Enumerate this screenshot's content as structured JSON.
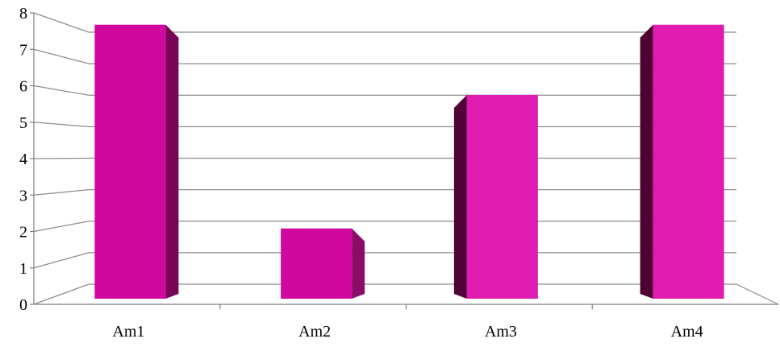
{
  "chart_data": {
    "type": "bar",
    "categories": [
      "Am1",
      "Am2",
      "Am3",
      "Am4"
    ],
    "values": [
      7.8,
      2.0,
      5.8,
      7.8
    ],
    "title": "",
    "xlabel": "",
    "ylabel": "",
    "ylim": [
      0,
      8
    ],
    "ytick_labels": [
      "0",
      "1",
      "2",
      "3",
      "4",
      "5",
      "6",
      "7",
      "8"
    ],
    "grid": true,
    "legend": "none",
    "colors": {
      "bar_front": [
        "#d0089f",
        "#d0089f",
        "#e01bb0",
        "#e01bb0"
      ],
      "bar_side": [
        "#7a0456",
        "#8a0c66",
        "#520336",
        "#4f0232"
      ],
      "bar_top": [
        "#9b0774",
        "#9b0774",
        "#a80a80",
        "#a80a80"
      ],
      "grid": "#8c8c8c",
      "axis": "#7f7f7f"
    },
    "style": "3d-perspective"
  }
}
